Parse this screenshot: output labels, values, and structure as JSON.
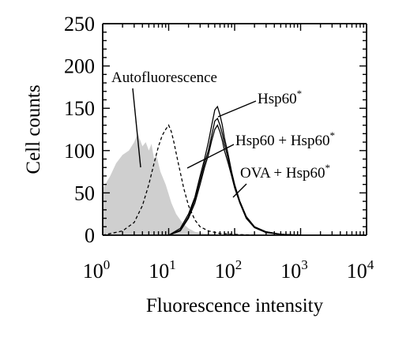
{
  "chart_data": {
    "type": "histogram",
    "xlabel": "Fluorescence intensity",
    "ylabel": "Cell counts",
    "xscale": "log",
    "xlim": [
      1,
      10000
    ],
    "ylim": [
      0,
      250
    ],
    "y_ticks": [
      0,
      50,
      100,
      150,
      200,
      250
    ],
    "x_ticks": [
      1,
      10,
      100,
      1000,
      10000
    ],
    "x_tick_labels": [
      {
        "base": "10",
        "exp": "0"
      },
      {
        "base": "10",
        "exp": "1"
      },
      {
        "base": "10",
        "exp": "2"
      },
      {
        "base": "10",
        "exp": "3"
      },
      {
        "base": "10",
        "exp": "4"
      }
    ],
    "grid": false,
    "annotations": [
      {
        "text": "Autofluorescence",
        "sup": ""
      },
      {
        "text": "Hsp60",
        "sup": "*"
      },
      {
        "text": "Hsp60 + Hsp60",
        "sup": "*"
      },
      {
        "text": "OVA + Hsp60",
        "sup": "*"
      }
    ],
    "series": [
      {
        "style": "filled-gray",
        "fill": "#cfcfcf",
        "x": [
          1,
          1.3,
          1.6,
          2,
          2.5,
          3,
          3.4,
          4,
          4.5,
          5,
          5.5,
          6,
          6.5,
          7.5,
          9,
          11,
          13,
          16,
          20,
          25,
          35,
          50,
          70
        ],
        "y": [
          55,
          70,
          85,
          95,
          100,
          110,
          120,
          105,
          110,
          100,
          108,
          90,
          95,
          75,
          60,
          38,
          25,
          15,
          8,
          4,
          2,
          1,
          0
        ]
      },
      {
        "style": "dashed",
        "x": [
          1,
          2,
          3,
          4,
          5,
          6,
          7,
          8,
          9,
          10,
          11,
          12,
          14,
          17,
          20,
          25,
          30,
          40,
          60,
          100,
          200
        ],
        "y": [
          0,
          5,
          15,
          35,
          60,
          85,
          105,
          118,
          125,
          130,
          122,
          110,
          85,
          55,
          35,
          18,
          10,
          5,
          2,
          1,
          0
        ]
      },
      {
        "style": "solid",
        "x": [
          10,
          15,
          20,
          25,
          30,
          35,
          40,
          45,
          50,
          55,
          60,
          65,
          70,
          80,
          90,
          100,
          120,
          150,
          200,
          300,
          500,
          1000
        ],
        "y": [
          0,
          8,
          25,
          45,
          70,
          90,
          110,
          130,
          148,
          152,
          142,
          130,
          115,
          95,
          75,
          60,
          40,
          22,
          10,
          4,
          1,
          0
        ]
      },
      {
        "style": "solid",
        "x": [
          10,
          15,
          20,
          25,
          30,
          35,
          40,
          45,
          50,
          55,
          60,
          65,
          70,
          80,
          90,
          100,
          120,
          150,
          200,
          300,
          500,
          1000
        ],
        "y": [
          0,
          6,
          22,
          42,
          65,
          85,
          100,
          118,
          135,
          138,
          130,
          120,
          108,
          90,
          72,
          58,
          40,
          22,
          10,
          4,
          1,
          0
        ]
      },
      {
        "style": "solid",
        "x": [
          10,
          15,
          20,
          25,
          30,
          35,
          40,
          45,
          50,
          55,
          60,
          65,
          70,
          80,
          90,
          100,
          120,
          150,
          200,
          300,
          500,
          1000
        ],
        "y": [
          0,
          5,
          20,
          38,
          60,
          80,
          95,
          112,
          125,
          130,
          122,
          112,
          100,
          85,
          70,
          56,
          38,
          20,
          9,
          3,
          1,
          0
        ]
      }
    ]
  }
}
